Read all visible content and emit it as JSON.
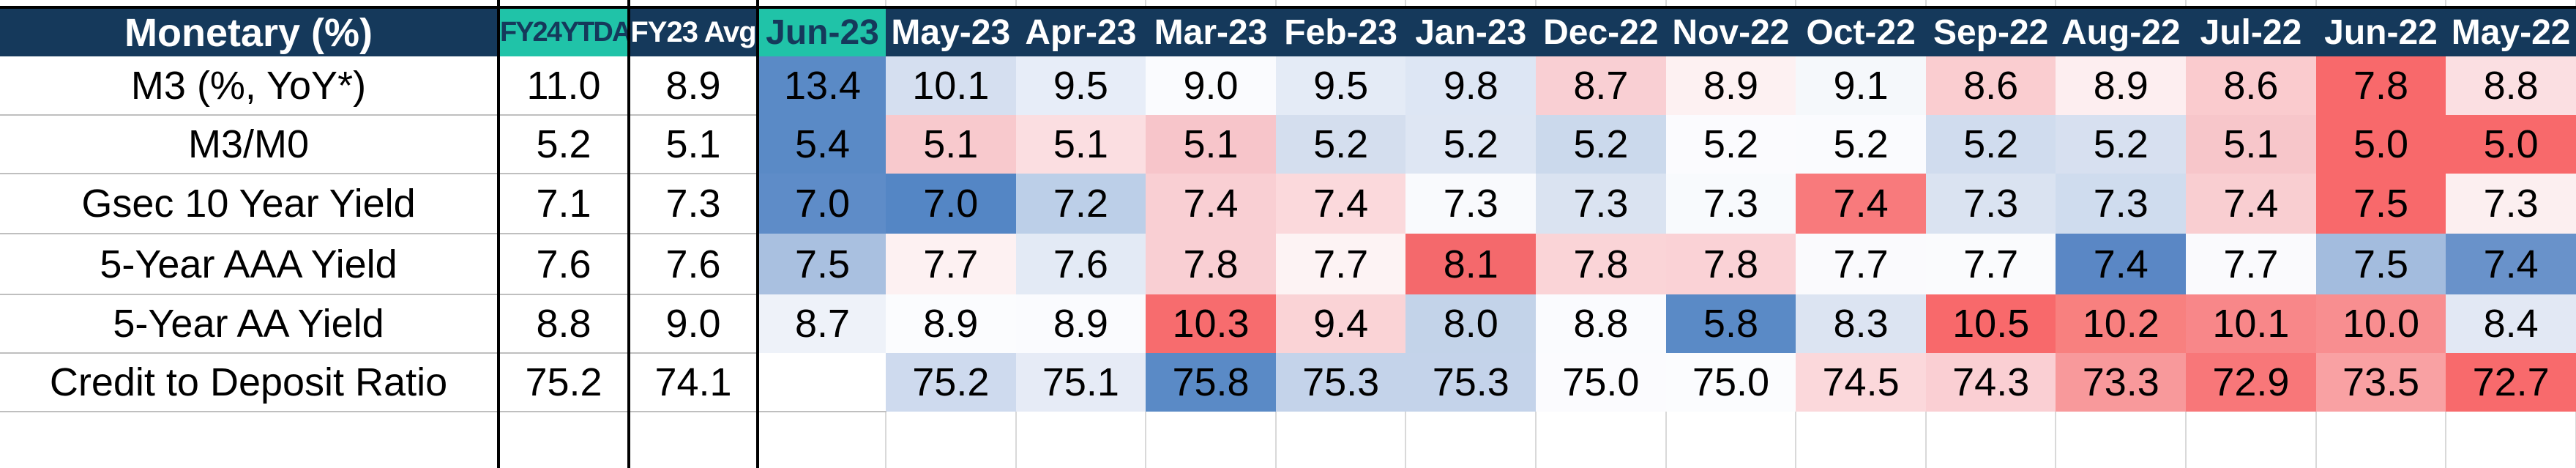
{
  "theme": {
    "header_bg": "#15395B",
    "header_text": "#FFFFFF",
    "accent_bg": "#20C3A8",
    "accent_text": "#123A5C",
    "cell_text": "#000000",
    "gridline": "#BFBFBF",
    "faint_gridline": "#D9D9D9",
    "border": "#000000"
  },
  "chart_data": {
    "type": "heatmap",
    "title": "Monetary (%)",
    "summary_columns": [
      "FY24YTDA",
      "FY23 Avg"
    ],
    "month_columns": [
      "Jun-23",
      "May-23",
      "Apr-23",
      "Mar-23",
      "Feb-23",
      "Jan-23",
      "Dec-22",
      "Nov-22",
      "Oct-22",
      "Sep-22",
      "Aug-22",
      "Jul-22",
      "Jun-22",
      "May-22"
    ],
    "highlighted_columns": [
      "FY24YTDA",
      "Jun-23"
    ],
    "color_scale": {
      "low": "#F8696B",
      "mid": "#FCFCFF",
      "high": "#5A8AC6"
    },
    "rows": [
      {
        "label": "M3 (%, YoY*)",
        "fy24ytda": "11.0",
        "fy23_avg": "8.9",
        "cells": [
          {
            "v": "13.4",
            "bg": "#5A8AC6"
          },
          {
            "v": "10.1",
            "bg": "#D5DFF0"
          },
          {
            "v": "9.5",
            "bg": "#E7EDF8"
          },
          {
            "v": "9.0",
            "bg": "#FAFBFE"
          },
          {
            "v": "9.5",
            "bg": "#E4EBF6"
          },
          {
            "v": "9.8",
            "bg": "#DDE6F4"
          },
          {
            "v": "8.7",
            "bg": "#F9CFD3"
          },
          {
            "v": "8.9",
            "bg": "#FDF1F2"
          },
          {
            "v": "9.1",
            "bg": "#F5F8FB"
          },
          {
            "v": "8.6",
            "bg": "#FACDD0"
          },
          {
            "v": "8.9",
            "bg": "#FDEEF0"
          },
          {
            "v": "8.6",
            "bg": "#FACBCE"
          },
          {
            "v": "7.8",
            "bg": "#F8696B"
          },
          {
            "v": "8.8",
            "bg": "#FBDFE2"
          }
        ]
      },
      {
        "label": "M3/M0",
        "fy24ytda": "5.2",
        "fy23_avg": "5.1",
        "cells": [
          {
            "v": "5.4",
            "bg": "#5A8AC6"
          },
          {
            "v": "5.1",
            "bg": "#F8C9CD"
          },
          {
            "v": "5.1",
            "bg": "#FBDEE1"
          },
          {
            "v": "5.1",
            "bg": "#F7C5CA"
          },
          {
            "v": "5.2",
            "bg": "#D4DEEE"
          },
          {
            "v": "5.2",
            "bg": "#DEE6F3"
          },
          {
            "v": "5.2",
            "bg": "#CBD9EC"
          },
          {
            "v": "5.2",
            "bg": "#FBFBFE"
          },
          {
            "v": "5.2",
            "bg": "#FAFBFE"
          },
          {
            "v": "5.2",
            "bg": "#D0DCEE"
          },
          {
            "v": "5.2",
            "bg": "#D7E0F0"
          },
          {
            "v": "5.1",
            "bg": "#F7C6CA"
          },
          {
            "v": "5.0",
            "bg": "#F8696B"
          },
          {
            "v": "5.0",
            "bg": "#F8696B"
          }
        ]
      },
      {
        "label": "Gsec 10 Year Yield",
        "fy24ytda": "7.1",
        "fy23_avg": "7.3",
        "cells": [
          {
            "v": "7.0",
            "bg": "#5E8CC8"
          },
          {
            "v": "7.0",
            "bg": "#5486C5"
          },
          {
            "v": "7.2",
            "bg": "#BCCFE8"
          },
          {
            "v": "7.4",
            "bg": "#F9CFD3"
          },
          {
            "v": "7.4",
            "bg": "#FBD9DC"
          },
          {
            "v": "7.3",
            "bg": "#F9FAFD"
          },
          {
            "v": "7.3",
            "bg": "#DAE3F1"
          },
          {
            "v": "7.3",
            "bg": "#F8FAFD"
          },
          {
            "v": "7.4",
            "bg": "#F87A7C"
          },
          {
            "v": "7.3",
            "bg": "#DAE3F1"
          },
          {
            "v": "7.3",
            "bg": "#CFDCEE"
          },
          {
            "v": "7.4",
            "bg": "#F9CED1"
          },
          {
            "v": "7.5",
            "bg": "#F8696B"
          },
          {
            "v": "7.3",
            "bg": "#FCEFF0"
          }
        ]
      },
      {
        "label": "5-Year AAA Yield",
        "fy24ytda": "7.6",
        "fy23_avg": "7.6",
        "cells": [
          {
            "v": "7.5",
            "bg": "#A9C0E0"
          },
          {
            "v": "7.7",
            "bg": "#FDF1F2"
          },
          {
            "v": "7.6",
            "bg": "#E3EAF5"
          },
          {
            "v": "7.8",
            "bg": "#F9CFD3"
          },
          {
            "v": "7.7",
            "bg": "#FDF3F4"
          },
          {
            "v": "8.1",
            "bg": "#F4696C"
          },
          {
            "v": "7.8",
            "bg": "#FAD4D7"
          },
          {
            "v": "7.8",
            "bg": "#FAD2D6"
          },
          {
            "v": "7.7",
            "bg": "#FAFAFD"
          },
          {
            "v": "7.7",
            "bg": "#FAFBFD"
          },
          {
            "v": "7.4",
            "bg": "#5A87C5"
          },
          {
            "v": "7.7",
            "bg": "#FAFAFD"
          },
          {
            "v": "7.5",
            "bg": "#A3BCDE"
          },
          {
            "v": "7.4",
            "bg": "#6992CA"
          }
        ]
      },
      {
        "label": "5-Year AA Yield",
        "fy24ytda": "8.8",
        "fy23_avg": "9.0",
        "cells": [
          {
            "v": "8.7",
            "bg": "#EEF2F9"
          },
          {
            "v": "8.9",
            "bg": "#FBFCFE"
          },
          {
            "v": "8.9",
            "bg": "#FAFBFE"
          },
          {
            "v": "10.3",
            "bg": "#F76C6E"
          },
          {
            "v": "9.4",
            "bg": "#FAD3D6"
          },
          {
            "v": "8.0",
            "bg": "#C3D3E9"
          },
          {
            "v": "8.8",
            "bg": "#FAFBFE"
          },
          {
            "v": "5.8",
            "bg": "#5A8AC6"
          },
          {
            "v": "8.3",
            "bg": "#DCE4F2"
          },
          {
            "v": "10.5",
            "bg": "#F8696B"
          },
          {
            "v": "10.2",
            "bg": "#F8807F"
          },
          {
            "v": "10.1",
            "bg": "#F88789"
          },
          {
            "v": "10.0",
            "bg": "#F88E90"
          },
          {
            "v": "8.4",
            "bg": "#E2E8F4"
          }
        ]
      },
      {
        "label": "Credit to Deposit Ratio",
        "fy24ytda": "75.2",
        "fy23_avg": "74.1",
        "cells": [
          {
            "v": "",
            "bg": ""
          },
          {
            "v": "75.2",
            "bg": "#CEDAEE"
          },
          {
            "v": "75.1",
            "bg": "#E6EBF6"
          },
          {
            "v": "75.8",
            "bg": "#5A8AC6"
          },
          {
            "v": "75.3",
            "bg": "#C4D3EA"
          },
          {
            "v": "75.3",
            "bg": "#C4D3EA"
          },
          {
            "v": "75.0",
            "bg": "#FBFBFE"
          },
          {
            "v": "75.0",
            "bg": "#FBFCFE"
          },
          {
            "v": "74.5",
            "bg": "#FBD8DB"
          },
          {
            "v": "74.3",
            "bg": "#FACFD3"
          },
          {
            "v": "73.3",
            "bg": "#F8999B"
          },
          {
            "v": "72.9",
            "bg": "#F87779"
          },
          {
            "v": "73.5",
            "bg": "#F9A1A3"
          },
          {
            "v": "72.7",
            "bg": "#F86A6C"
          }
        ]
      }
    ]
  }
}
